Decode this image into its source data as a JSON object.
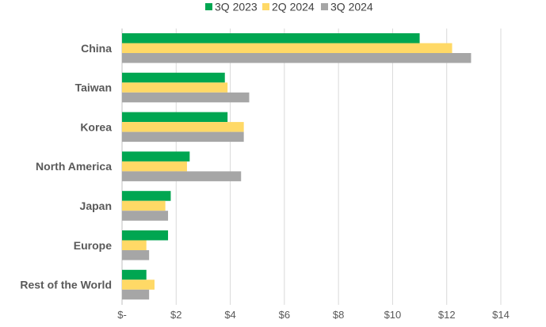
{
  "chart_data": {
    "type": "bar",
    "orientation": "horizontal",
    "categories": [
      "China",
      "Taiwan",
      "Korea",
      "North America",
      "Japan",
      "Europe",
      "Rest of the World"
    ],
    "series": [
      {
        "name": "3Q 2023",
        "color": "#00a651",
        "values": [
          11.0,
          3.8,
          3.9,
          2.5,
          1.8,
          1.7,
          0.9
        ]
      },
      {
        "name": "2Q 2024",
        "color": "#ffd966",
        "values": [
          12.2,
          3.9,
          4.5,
          2.4,
          1.6,
          0.9,
          1.2
        ]
      },
      {
        "name": "3Q 2024",
        "color": "#a6a6a6",
        "values": [
          12.9,
          4.7,
          4.5,
          4.4,
          1.7,
          1.0,
          1.0
        ]
      }
    ],
    "xlim": [
      0,
      14
    ],
    "x_ticks": [
      0,
      2,
      4,
      6,
      8,
      10,
      12,
      14
    ],
    "x_tick_labels": [
      "$-",
      "$2",
      "$4",
      "$6",
      "$8",
      "$10",
      "$12",
      "$14"
    ],
    "grid": true,
    "legend_position": "top-center",
    "title": "",
    "xlabel": "",
    "ylabel": ""
  }
}
